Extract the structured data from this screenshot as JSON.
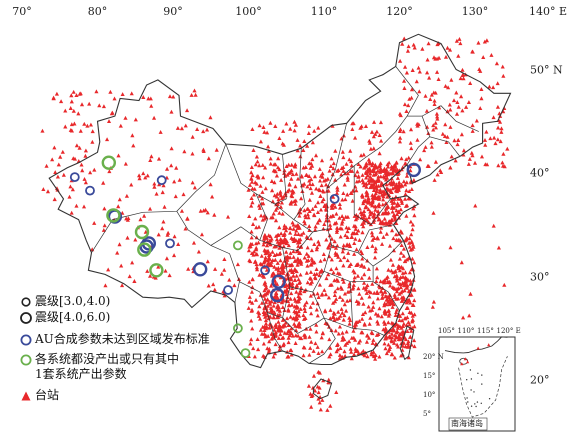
{
  "axes": {
    "lon_labels": [
      {
        "text": "70°",
        "lon": 70
      },
      {
        "text": "80°",
        "lon": 80
      },
      {
        "text": "90°",
        "lon": 90
      },
      {
        "text": "100°",
        "lon": 100
      },
      {
        "text": "110°",
        "lon": 110
      },
      {
        "text": "120°",
        "lon": 120
      },
      {
        "text": "130°",
        "lon": 130
      },
      {
        "text": "140° E",
        "lon": 140
      }
    ],
    "lat_labels": [
      {
        "text": "50° N",
        "lat": 50
      },
      {
        "text": "40°",
        "lat": 40
      },
      {
        "text": "30°",
        "lat": 30
      },
      {
        "text": "20°",
        "lat": 20
      }
    ],
    "lon_range": [
      70,
      140
    ],
    "lat_range": [
      17,
      55
    ]
  },
  "legend": {
    "items": [
      {
        "key": "small",
        "label": "震级[3.0,4.0)",
        "color": "#222222"
      },
      {
        "key": "large",
        "label": "震级[4.0,6.0)",
        "color": "#222222"
      },
      {
        "key": "au",
        "label": "AU合成参数未达到区域发布标准",
        "color": "#3a4a9a"
      },
      {
        "key": "none",
        "label": "各系统都没产出或只有其中",
        "label2": "1套系统产出参数",
        "color": "#6ab04c"
      },
      {
        "key": "station",
        "label": "台站",
        "color": "#e8282b"
      }
    ]
  },
  "events": {
    "au": [
      {
        "lon": 77.0,
        "lat": 39.6,
        "size": "small"
      },
      {
        "lon": 79.0,
        "lat": 38.3,
        "size": "small"
      },
      {
        "lon": 88.5,
        "lat": 39.3,
        "size": "small"
      },
      {
        "lon": 82.3,
        "lat": 35.8,
        "size": "large"
      },
      {
        "lon": 86.5,
        "lat": 32.9,
        "size": "large"
      },
      {
        "lon": 86.8,
        "lat": 33.2,
        "size": "large"
      },
      {
        "lon": 89.6,
        "lat": 33.2,
        "size": "small"
      },
      {
        "lon": 93.6,
        "lat": 30.7,
        "size": "large"
      },
      {
        "lon": 97.3,
        "lat": 28.7,
        "size": "small"
      },
      {
        "lon": 102.2,
        "lat": 30.6,
        "size": "small"
      },
      {
        "lon": 104.0,
        "lat": 29.5,
        "size": "large"
      },
      {
        "lon": 103.8,
        "lat": 28.2,
        "size": "large"
      },
      {
        "lon": 111.4,
        "lat": 37.5,
        "size": "small"
      },
      {
        "lon": 121.9,
        "lat": 40.3,
        "size": "large"
      }
    ],
    "none": [
      {
        "lon": 81.5,
        "lat": 41.0,
        "size": "large"
      },
      {
        "lon": 82.1,
        "lat": 35.9,
        "size": "large"
      },
      {
        "lon": 85.9,
        "lat": 34.3,
        "size": "large"
      },
      {
        "lon": 86.2,
        "lat": 32.6,
        "size": "large"
      },
      {
        "lon": 87.8,
        "lat": 30.6,
        "size": "large"
      },
      {
        "lon": 98.6,
        "lat": 33.0,
        "size": "small"
      },
      {
        "lon": 98.6,
        "lat": 25.0,
        "size": "small"
      },
      {
        "lon": 99.6,
        "lat": 22.6,
        "size": "small"
      }
    ]
  },
  "inset": {
    "lon_labels": [
      {
        "text": "105°",
        "lon": 105
      },
      {
        "text": "110°",
        "lon": 110
      },
      {
        "text": "115°",
        "lon": 115
      },
      {
        "text": "120° E",
        "lon": 120
      }
    ],
    "lat_labels": [
      {
        "text": "20° N",
        "lat": 20
      },
      {
        "text": "15°",
        "lat": 15
      },
      {
        "text": "10°",
        "lat": 10
      },
      {
        "text": "5°",
        "lat": 5
      }
    ],
    "title": "南海诸岛"
  },
  "colors": {
    "station": "#e8282b",
    "boundary": "#333333",
    "au": "#3a4a9a",
    "none": "#6ab04c",
    "magnitude": "#222222"
  }
}
